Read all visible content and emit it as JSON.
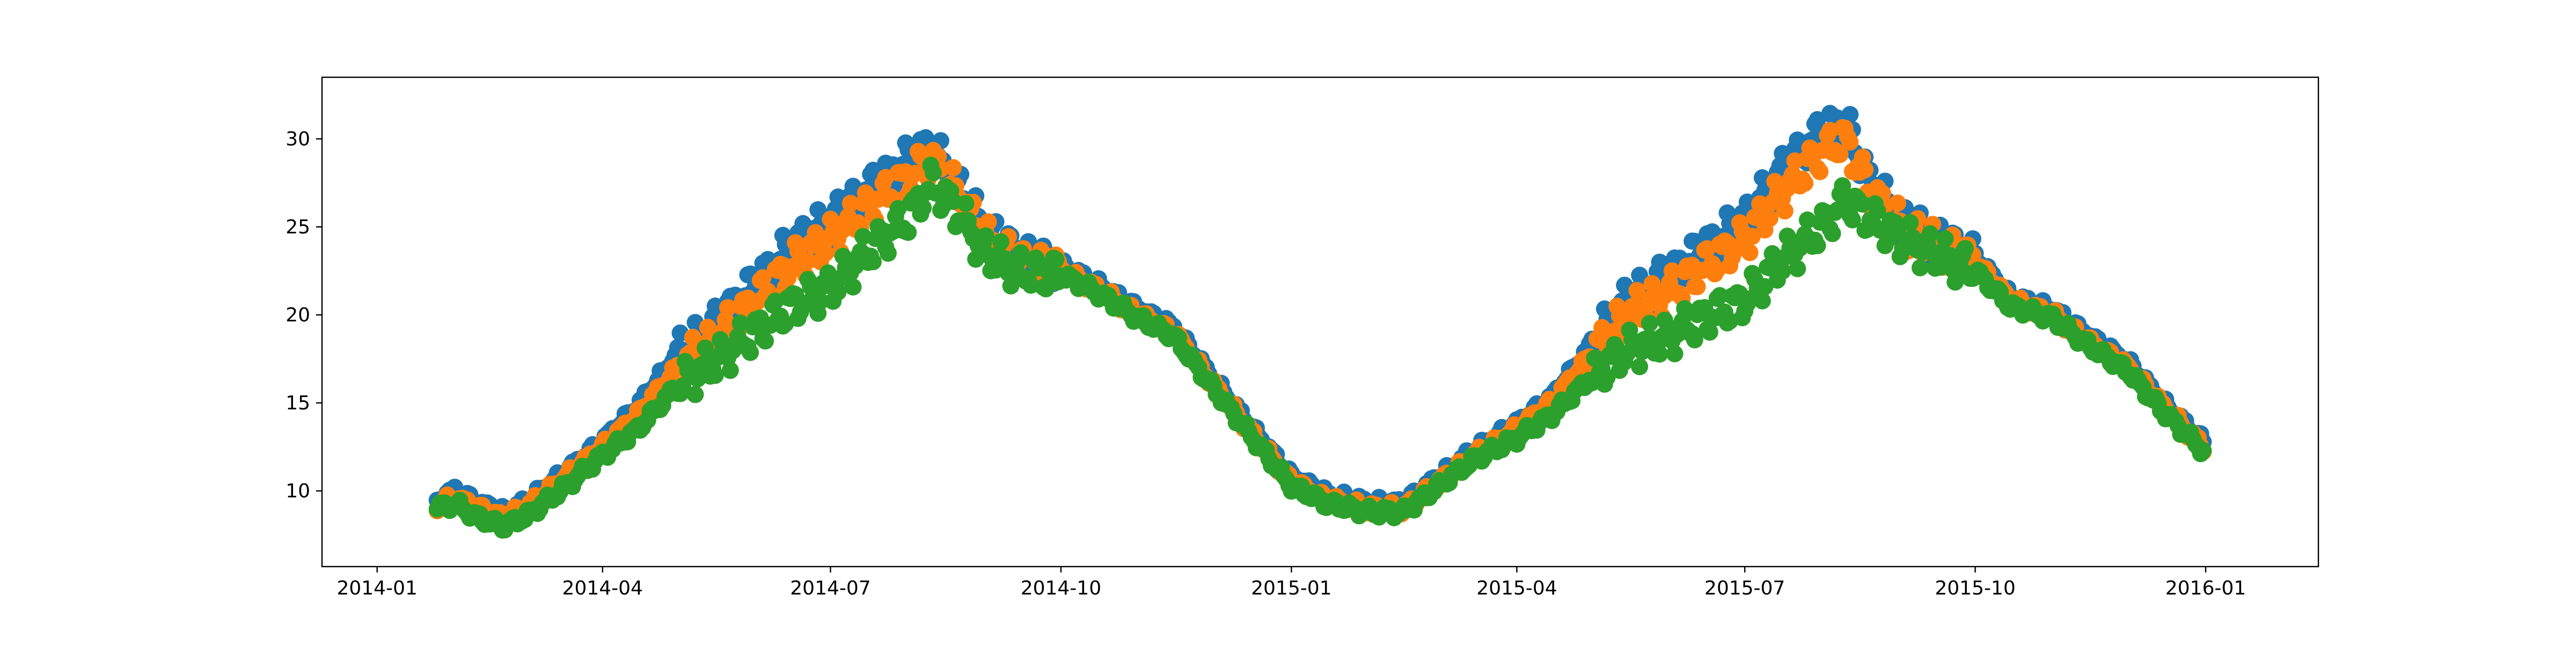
{
  "chart_data": {
    "type": "scatter",
    "title": "",
    "xlabel": "",
    "ylabel": "",
    "x_axis": {
      "type": "date",
      "range": [
        "2013-12-10",
        "2016-02-15"
      ],
      "tick_labels": [
        {
          "date": "2014-01-01",
          "label": "2014-01"
        },
        {
          "date": "2014-04-01",
          "label": "2014-04"
        },
        {
          "date": "2014-07-01",
          "label": "2014-07"
        },
        {
          "date": "2014-10-01",
          "label": "2014-10"
        },
        {
          "date": "2015-01-01",
          "label": "2015-01"
        },
        {
          "date": "2015-04-01",
          "label": "2015-04"
        },
        {
          "date": "2015-07-01",
          "label": "2015-07"
        },
        {
          "date": "2015-10-01",
          "label": "2015-10"
        },
        {
          "date": "2016-01-01",
          "label": "2016-01"
        }
      ]
    },
    "y_axis": {
      "range": [
        5.7,
        33.5
      ],
      "ticks": [
        10,
        15,
        20,
        25,
        30
      ],
      "tick_labels": [
        "10",
        "15",
        "20",
        "25",
        "30"
      ]
    },
    "grid": false,
    "legend": "none",
    "series": [
      {
        "color": "#1f77b4",
        "x": [
          "2014-01-25",
          "2014-02-01",
          "2014-02-10",
          "2014-02-20",
          "2014-03-01",
          "2014-03-15",
          "2014-04-01",
          "2014-04-15",
          "2014-05-01",
          "2014-05-15",
          "2014-06-01",
          "2014-06-15",
          "2014-07-01",
          "2014-07-15",
          "2014-08-01",
          "2014-08-10",
          "2014-08-20",
          "2014-09-01",
          "2014-09-15",
          "2014-10-01",
          "2014-10-15",
          "2014-11-01",
          "2014-11-15",
          "2014-12-01",
          "2014-12-15",
          "2015-01-01",
          "2015-01-15",
          "2015-02-01",
          "2015-02-15",
          "2015-03-01",
          "2015-03-15",
          "2015-04-01",
          "2015-04-15",
          "2015-05-01",
          "2015-05-15",
          "2015-06-01",
          "2015-06-15",
          "2015-07-01",
          "2015-07-15",
          "2015-08-01",
          "2015-08-10",
          "2015-08-20",
          "2015-09-01",
          "2015-09-15",
          "2015-10-01",
          "2015-10-15",
          "2015-11-01",
          "2015-11-15",
          "2015-12-01",
          "2015-12-15",
          "2015-12-31"
        ],
        "y": [
          9.5,
          10.0,
          9.3,
          8.8,
          9.3,
          10.8,
          12.8,
          14.8,
          17.8,
          19.3,
          21.8,
          23.8,
          25.3,
          27.0,
          28.8,
          29.5,
          27.5,
          24.8,
          23.3,
          22.8,
          21.8,
          20.3,
          19.3,
          16.3,
          13.8,
          10.8,
          9.8,
          9.3,
          9.3,
          10.8,
          12.3,
          13.8,
          15.3,
          18.3,
          20.8,
          22.3,
          23.8,
          25.3,
          28.0,
          30.5,
          31.0,
          27.5,
          25.3,
          24.3,
          23.3,
          21.0,
          20.3,
          18.8,
          17.3,
          15.0,
          12.8
        ]
      },
      {
        "color": "#ff7f0e",
        "x": [
          "2014-01-25",
          "2014-02-01",
          "2014-02-10",
          "2014-02-20",
          "2014-03-01",
          "2014-03-15",
          "2014-04-01",
          "2014-04-15",
          "2014-05-01",
          "2014-05-15",
          "2014-06-01",
          "2014-06-15",
          "2014-07-01",
          "2014-07-15",
          "2014-08-01",
          "2014-08-10",
          "2014-08-20",
          "2014-09-01",
          "2014-09-15",
          "2014-10-01",
          "2014-10-15",
          "2014-11-01",
          "2014-11-15",
          "2014-12-01",
          "2014-12-15",
          "2015-01-01",
          "2015-01-15",
          "2015-02-01",
          "2015-02-15",
          "2015-03-01",
          "2015-03-15",
          "2015-04-01",
          "2015-04-15",
          "2015-05-01",
          "2015-05-15",
          "2015-06-01",
          "2015-06-15",
          "2015-07-01",
          "2015-07-15",
          "2015-08-01",
          "2015-08-10",
          "2015-08-20",
          "2015-09-01",
          "2015-09-15",
          "2015-10-01",
          "2015-10-15",
          "2015-11-01",
          "2015-11-15",
          "2015-12-01",
          "2015-12-15",
          "2015-12-31"
        ],
        "y": [
          9.2,
          9.6,
          9.0,
          8.5,
          9.0,
          10.5,
          12.5,
          14.3,
          17.0,
          18.5,
          20.8,
          22.8,
          24.3,
          26.0,
          27.8,
          28.8,
          27.0,
          24.3,
          23.0,
          22.5,
          21.5,
          20.0,
          19.0,
          16.0,
          13.5,
          10.5,
          9.5,
          9.0,
          9.0,
          10.5,
          12.0,
          13.5,
          15.0,
          17.8,
          20.0,
          21.3,
          22.8,
          24.3,
          26.8,
          29.3,
          30.0,
          27.0,
          25.0,
          24.0,
          23.0,
          20.8,
          20.0,
          18.5,
          17.0,
          14.8,
          12.5
        ]
      },
      {
        "color": "#2ca02c",
        "x": [
          "2014-01-25",
          "2014-02-01",
          "2014-02-10",
          "2014-02-20",
          "2014-03-01",
          "2014-03-15",
          "2014-04-01",
          "2014-04-15",
          "2014-05-01",
          "2014-05-15",
          "2014-06-01",
          "2014-06-15",
          "2014-07-01",
          "2014-07-15",
          "2014-08-01",
          "2014-08-10",
          "2014-08-20",
          "2014-09-01",
          "2014-09-15",
          "2014-10-01",
          "2014-10-15",
          "2014-11-01",
          "2014-11-15",
          "2014-12-01",
          "2014-12-15",
          "2015-01-01",
          "2015-01-15",
          "2015-02-01",
          "2015-02-15",
          "2015-03-01",
          "2015-03-15",
          "2015-04-01",
          "2015-04-15",
          "2015-05-01",
          "2015-05-15",
          "2015-06-01",
          "2015-06-15",
          "2015-07-01",
          "2015-07-15",
          "2015-08-01",
          "2015-08-10",
          "2015-08-20",
          "2015-09-01",
          "2015-09-15",
          "2015-10-01",
          "2015-10-15",
          "2015-11-01",
          "2015-11-15",
          "2015-12-01",
          "2015-12-15",
          "2015-12-31"
        ],
        "y": [
          9.0,
          9.3,
          8.5,
          8.0,
          8.5,
          10.0,
          12.0,
          13.5,
          16.0,
          17.3,
          19.0,
          20.5,
          21.5,
          23.5,
          25.5,
          27.5,
          26.0,
          23.5,
          22.5,
          22.3,
          21.3,
          19.8,
          18.8,
          15.8,
          13.3,
          10.3,
          9.3,
          8.8,
          8.8,
          10.3,
          11.8,
          13.0,
          14.3,
          16.5,
          18.0,
          18.8,
          19.8,
          20.8,
          23.0,
          25.0,
          26.5,
          25.5,
          24.3,
          23.5,
          22.5,
          20.5,
          19.8,
          18.3,
          16.8,
          14.5,
          12.3
        ]
      }
    ]
  }
}
